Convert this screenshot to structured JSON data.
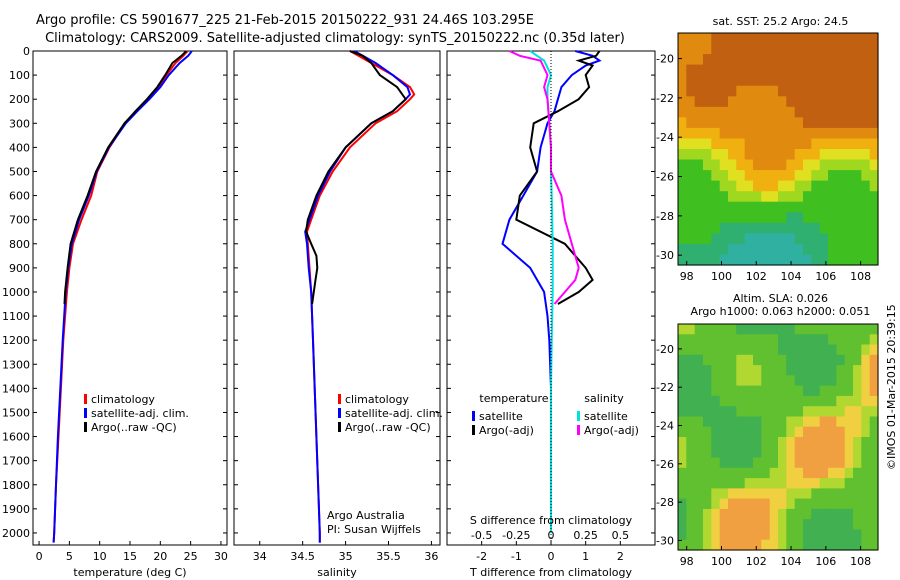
{
  "header": {
    "line1": "Argo profile: CS 5901677_225 21-Feb-2015 20150222_931 24.46S 103.295E",
    "line2": "Climatology: CARS2009. Satellite-adjusted climatology: synTS_20150222.nc (0.35d later)"
  },
  "credits": {
    "org": "Argo Australia",
    "pi": "PI: Susan Wijffels",
    "stamp": "©IMOS 01-Mar-2015 20:39:15"
  },
  "colors": {
    "climatology": "#ff0000",
    "satellite": "#0000ff",
    "argo": "#000000",
    "satellite_salinity": "#00e0e0",
    "argo_salinity": "#ff00ff"
  },
  "chart_data": [
    {
      "type": "line",
      "id": "temperature",
      "xlabel": "temperature (deg C)",
      "ylim": [
        2050,
        0
      ],
      "xlim": [
        -1,
        31
      ],
      "xticks": [
        0,
        5,
        10,
        15,
        20,
        25,
        30
      ],
      "yticks": [
        0,
        100,
        200,
        300,
        400,
        500,
        600,
        700,
        800,
        900,
        1000,
        1100,
        1200,
        1300,
        1400,
        1500,
        1600,
        1700,
        1800,
        1900,
        2000
      ],
      "legend": [
        "climatology",
        "satellite-adj. clim.",
        "Argo(..raw -QC)"
      ],
      "series": [
        {
          "name": "climatology",
          "color": "#ff0000",
          "depth": [
            0,
            20,
            50,
            100,
            150,
            200,
            250,
            300,
            400,
            500,
            600,
            700,
            800,
            900,
            1000,
            1200,
            1400,
            1600,
            1800,
            2000,
            2040
          ],
          "values": [
            24.5,
            23.8,
            22.5,
            21.0,
            19.8,
            18.0,
            16.0,
            14.2,
            11.6,
            9.6,
            8.6,
            7.0,
            5.6,
            5.0,
            4.6,
            4.0,
            3.6,
            3.2,
            2.8,
            2.5,
            2.4
          ]
        },
        {
          "name": "satellite-adj. clim.",
          "color": "#0000ff",
          "depth": [
            0,
            20,
            50,
            100,
            150,
            200,
            250,
            300,
            400,
            500,
            600,
            700,
            800,
            900,
            1000,
            1200,
            1400,
            1600,
            1800,
            2000,
            2040
          ],
          "values": [
            25.2,
            24.6,
            23.2,
            21.4,
            20.0,
            18.2,
            16.2,
            14.3,
            11.5,
            9.5,
            8.2,
            6.6,
            5.4,
            4.8,
            4.4,
            3.9,
            3.5,
            3.1,
            2.8,
            2.5,
            2.4
          ]
        },
        {
          "name": "Argo(..raw -QC)",
          "color": "#000000",
          "depth": [
            0,
            20,
            50,
            100,
            150,
            200,
            250,
            300,
            400,
            500,
            600,
            700,
            800,
            900,
            1000,
            1050
          ],
          "values": [
            24.3,
            23.5,
            22.0,
            20.8,
            19.5,
            17.8,
            15.9,
            14.1,
            11.4,
            9.4,
            8.0,
            6.4,
            5.2,
            4.7,
            4.3,
            4.2
          ]
        }
      ]
    },
    {
      "type": "line",
      "id": "salinity",
      "xlabel": "salinity",
      "ylim": [
        2050,
        0
      ],
      "xlim": [
        33.7,
        36.1
      ],
      "xticks": [
        34,
        34.5,
        35,
        35.5,
        36
      ],
      "legend": [
        "climatology",
        "satellite-adj. clim.",
        "Argo(..raw -QC)"
      ],
      "series": [
        {
          "name": "climatology",
          "color": "#ff0000",
          "depth": [
            0,
            20,
            50,
            100,
            150,
            180,
            200,
            250,
            300,
            400,
            500,
            600,
            700,
            750,
            800,
            900,
            1000,
            1200,
            1400,
            1600,
            1800,
            2000,
            2040
          ],
          "values": [
            35.05,
            35.15,
            35.3,
            35.55,
            35.75,
            35.8,
            35.75,
            35.6,
            35.35,
            35.05,
            34.85,
            34.7,
            34.6,
            34.55,
            34.56,
            34.58,
            34.6,
            34.62,
            34.64,
            34.66,
            34.68,
            34.7,
            34.7
          ]
        },
        {
          "name": "satellite-adj. clim.",
          "color": "#0000ff",
          "depth": [
            0,
            20,
            50,
            100,
            150,
            180,
            200,
            250,
            300,
            400,
            500,
            600,
            700,
            750,
            800,
            900,
            1000,
            1200,
            1400,
            1600,
            1800,
            2000,
            2040
          ],
          "values": [
            35.1,
            35.2,
            35.35,
            35.55,
            35.72,
            35.75,
            35.7,
            35.55,
            35.3,
            35.0,
            34.82,
            34.68,
            34.58,
            34.53,
            34.55,
            34.57,
            34.6,
            34.62,
            34.64,
            34.66,
            34.68,
            34.7,
            34.7
          ]
        },
        {
          "name": "Argo(..raw -QC)",
          "color": "#000000",
          "depth": [
            0,
            20,
            50,
            100,
            150,
            200,
            250,
            300,
            400,
            500,
            600,
            700,
            750,
            800,
            850,
            900,
            950,
            1000,
            1050
          ],
          "values": [
            35.05,
            35.2,
            35.3,
            35.4,
            35.6,
            35.7,
            35.55,
            35.3,
            35.0,
            34.8,
            34.66,
            34.56,
            34.54,
            34.6,
            34.66,
            34.67,
            34.65,
            34.63,
            34.61
          ]
        }
      ]
    },
    {
      "type": "line",
      "id": "difference",
      "xlabel": "T difference from climatology",
      "xlabel_top": "S difference from climatology",
      "ylim": [
        2050,
        0
      ],
      "xlim": [
        -3,
        3
      ],
      "xticks": [
        -2,
        -1,
        0,
        1,
        2
      ],
      "xticks_top": [
        "-0.5",
        "-0.25",
        "0",
        "0.25",
        "0.5"
      ],
      "legend_headers": [
        "temperature",
        "salinity"
      ],
      "legend": [
        "satellite",
        "Argo(-adj)",
        "satellite",
        "Argo(-adj)"
      ],
      "series": [
        {
          "name": "satellite",
          "group": "temperature",
          "color": "#0000ff",
          "depth": [
            0,
            20,
            40,
            60,
            100,
            150,
            200,
            250,
            300,
            400,
            500,
            600,
            700,
            800,
            900,
            1000,
            1100,
            1200,
            1400,
            1600,
            1800,
            2000
          ],
          "values": [
            0.7,
            1.2,
            1.4,
            1.0,
            0.6,
            0.3,
            0.2,
            0.1,
            -0.1,
            -0.3,
            -0.4,
            -0.8,
            -1.2,
            -1.4,
            -0.6,
            -0.2,
            -0.1,
            -0.05,
            0.0,
            0.0,
            0.0,
            0.0
          ]
        },
        {
          "name": "Argo(-adj)",
          "group": "temperature",
          "color": "#000000",
          "depth": [
            0,
            20,
            40,
            60,
            100,
            150,
            200,
            250,
            300,
            400,
            500,
            600,
            700,
            800,
            900,
            950,
            1000,
            1050
          ],
          "values": [
            1.4,
            1.3,
            0.8,
            1.2,
            1.0,
            1.1,
            0.8,
            0.2,
            -0.5,
            -0.6,
            -0.4,
            -0.9,
            -1.0,
            0.4,
            1.0,
            1.2,
            0.8,
            0.2
          ]
        },
        {
          "name": "satellite",
          "group": "salinity",
          "color": "#00e0e0",
          "depth": [
            0,
            20,
            40,
            100,
            150,
            200,
            300,
            400,
            500,
            600,
            800,
            1000,
            1200,
            1400,
            1600,
            1800,
            2000
          ],
          "values": [
            -0.6,
            -0.4,
            -0.2,
            0.0,
            -0.1,
            -0.1,
            -0.05,
            0.0,
            0.0,
            0.02,
            0.05,
            0.05,
            0.02,
            0.0,
            0.0,
            0.0,
            0.0
          ]
        },
        {
          "name": "Argo(-adj)",
          "group": "salinity",
          "color": "#ff00ff",
          "depth": [
            0,
            20,
            40,
            100,
            150,
            200,
            300,
            400,
            500,
            600,
            700,
            800,
            900,
            950,
            1000,
            1050
          ],
          "values": [
            -1.2,
            -0.9,
            -0.3,
            -0.1,
            -0.2,
            -0.1,
            -0.05,
            0.0,
            0.0,
            0.3,
            0.4,
            0.6,
            0.8,
            0.7,
            0.4,
            0.1
          ]
        }
      ]
    }
  ],
  "maps": {
    "sst": {
      "title": "sat. SST: 25.2 Argo: 24.5",
      "xticks": [
        98,
        100,
        102,
        104,
        106,
        108
      ],
      "yticks": [
        -20,
        -22,
        -24,
        -26,
        -28,
        -30
      ],
      "xlim": [
        97.5,
        109
      ],
      "ylim": [
        -30.5,
        -18.7
      ]
    },
    "sla": {
      "title1": "Altim. SLA: 0.026",
      "title2": "Argo h1000: 0.063 h2000: 0.051",
      "xticks": [
        98,
        100,
        102,
        104,
        106,
        108
      ],
      "yticks": [
        -20,
        -22,
        -24,
        -26,
        -28,
        -30
      ],
      "xlim": [
        97.5,
        109
      ],
      "ylim": [
        -30.5,
        -18.7
      ]
    }
  }
}
